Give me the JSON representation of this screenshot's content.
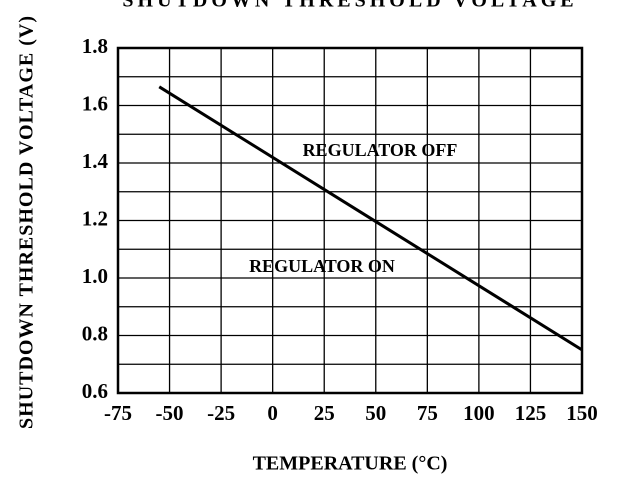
{
  "chart_data": {
    "type": "line",
    "title": "SHUTDOWN THRESHOLD VOLTAGE",
    "xlabel": "TEMPERATURE (°C)",
    "ylabel": "SHUTDOWN THRESHOLD VOLTAGE (V)",
    "x": [
      -55,
      150
    ],
    "series": [
      {
        "color": "#000000",
        "values": [
          1.665,
          0.75
        ]
      }
    ],
    "xlim": [
      -75,
      150
    ],
    "xticks": [
      -75,
      -50,
      -25,
      0,
      25,
      50,
      75,
      100,
      125,
      150
    ],
    "ylim": [
      0.6,
      1.8
    ],
    "yticks": [
      {
        "value": 0.6,
        "label": "0.6"
      },
      {
        "value": 0.8,
        "label": "0.8"
      },
      {
        "value": 1.0,
        "label": "1.0"
      },
      {
        "value": 1.2,
        "label": "1.2"
      },
      {
        "value": 1.4,
        "label": "1.4"
      },
      {
        "value": 1.6,
        "label": "1.6"
      },
      {
        "value": 1.8,
        "label": "1.8"
      }
    ],
    "yminor": [
      0.7,
      0.9,
      1.1,
      1.3,
      1.5,
      1.7
    ],
    "grid": true,
    "annotations": [
      "REGULATOR OFF",
      "REGULATOR ON"
    ]
  }
}
